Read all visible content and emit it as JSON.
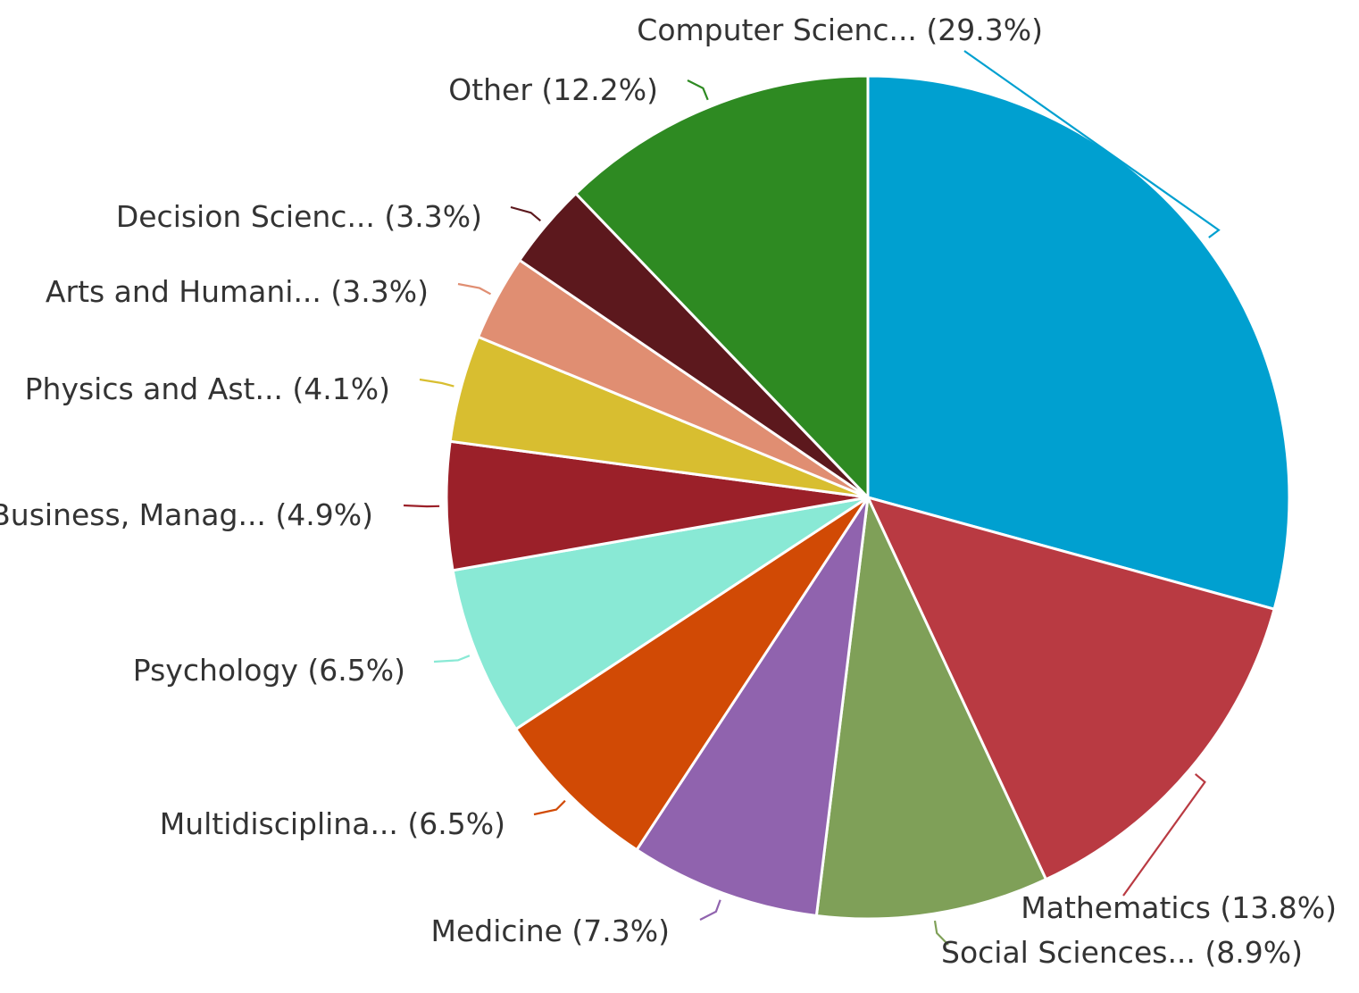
{
  "chart_data": {
    "type": "pie",
    "slices": [
      {
        "label": "Computer Scienc...",
        "value": 29.3,
        "display": "(29.3%)",
        "color": "#00a0d0"
      },
      {
        "label": "Mathematics",
        "value": 13.8,
        "display": "(13.8%)",
        "color": "#b93a42"
      },
      {
        "label": "Social Sciences...",
        "value": 8.9,
        "display": "(8.9%)",
        "color": "#7fa058"
      },
      {
        "label": "Medicine",
        "value": 7.3,
        "display": "(7.3%)",
        "color": "#9063ae"
      },
      {
        "label": "Multidisciplina...",
        "value": 6.5,
        "display": "(6.5%)",
        "color": "#d14a05"
      },
      {
        "label": "Psychology",
        "value": 6.5,
        "display": "(6.5%)",
        "color": "#89e9d5"
      },
      {
        "label": "Business, Manag...",
        "value": 4.9,
        "display": "(4.9%)",
        "color": "#9b2029"
      },
      {
        "label": "Physics and Ast...",
        "value": 4.1,
        "display": "(4.1%)",
        "color": "#d8be30"
      },
      {
        "label": "Arts and Humani...",
        "value": 3.3,
        "display": "(3.3%)",
        "color": "#e08e72"
      },
      {
        "label": "Decision Scienc...",
        "value": 3.3,
        "display": "(3.3%)",
        "color": "#5c181d"
      },
      {
        "label": "Other",
        "value": 12.2,
        "display": "(12.2%)",
        "color": "#2e8a22"
      }
    ]
  }
}
